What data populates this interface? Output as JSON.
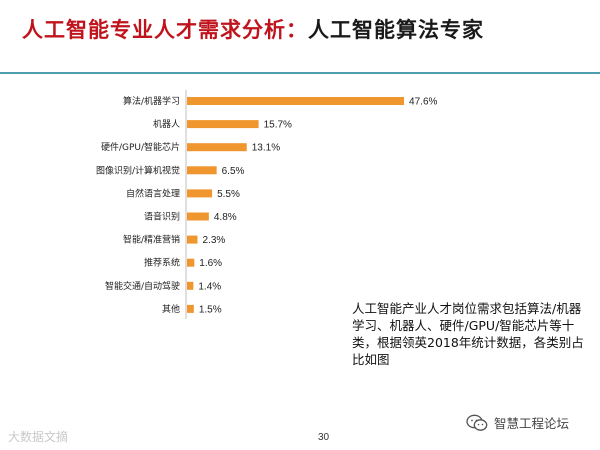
{
  "title": {
    "part1": "人工智能专业人才需求分析：",
    "part2": "人工智能算法专家"
  },
  "chart_data": {
    "type": "bar",
    "orientation": "horizontal",
    "categories": [
      "算法/机器学习",
      "机器人",
      "硬件/GPU/智能芯片",
      "图像识别/计算机视觉",
      "自然语言处理",
      "语音识别",
      "智能/精准营销",
      "推荐系统",
      "智能交通/自动驾驶",
      "其他"
    ],
    "values": [
      47.6,
      15.7,
      13.1,
      6.5,
      5.5,
      4.8,
      2.3,
      1.6,
      1.4,
      1.5
    ],
    "value_labels": [
      "47.6%",
      "15.7%",
      "13.1%",
      "6.5%",
      "5.5%",
      "4.8%",
      "2.3%",
      "1.6%",
      "1.4%",
      "1.5%"
    ],
    "xlim": [
      0,
      50
    ],
    "bar_color": "#f0962e",
    "grid": false,
    "legend": "none"
  },
  "note": "人工智能产业人才岗位需求包括算法/机器学习、机器人、硬件/GPU/智能芯片等十类，根据领英2018年统计数据，各类别占比如图",
  "watermark": "大数据文摘",
  "page_number": "30",
  "brand": {
    "name": "智慧工程论坛",
    "icon": "wechat-icon"
  },
  "colors": {
    "title_red": "#c0141c",
    "rule": "#4d9fb0",
    "bar": "#f0962e"
  }
}
